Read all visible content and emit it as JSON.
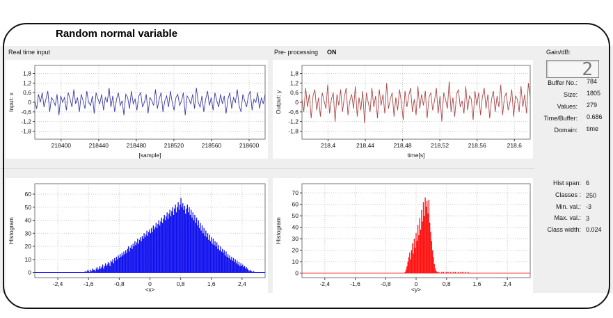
{
  "title": "Random normal variable",
  "top_left": {
    "label": "Real time input",
    "chart_data": {
      "type": "line",
      "ylabel": "Input: x",
      "xlabel": "[sample]",
      "xlim": [
        218372,
        218617
      ],
      "ylim": [
        -2.3,
        2.3
      ],
      "xticks": [
        218400,
        218440,
        218480,
        218520,
        218560,
        218600
      ],
      "xtick_labels": [
        "218400",
        "218440",
        "218480",
        "218520",
        "218560",
        "218600"
      ],
      "yticks": [
        1.8,
        1.2,
        0.6,
        0,
        -0.6,
        -1.2,
        -1.8
      ],
      "ytick_labels": [
        "1,8",
        "1,2",
        "0,6",
        "0",
        "-0,6",
        "-1,2",
        "-1,8"
      ],
      "color": "#3a3aa8",
      "grid": true,
      "y": [
        0.1,
        -0.4,
        0.5,
        0.0,
        0.6,
        -0.3,
        0.2,
        0.7,
        -0.6,
        0.3,
        0.1,
        -0.2,
        0.5,
        -0.8,
        0.4,
        0.0,
        0.3,
        -0.5,
        0.6,
        0.2,
        -0.3,
        0.8,
        -0.1,
        0.3,
        -0.6,
        0.5,
        0.1,
        -0.4,
        0.7,
        0.0,
        -0.2,
        0.4,
        -0.7,
        0.6,
        0.2,
        -0.1,
        0.5,
        -0.5,
        0.3,
        0.0,
        0.9,
        -0.3,
        0.4,
        -0.6,
        0.2,
        0.6,
        -0.2,
        0.1,
        -0.8,
        0.5,
        0.3,
        -0.4,
        0.7,
        -0.1,
        0.2,
        -0.5,
        0.4,
        0.6,
        -0.3,
        0.0,
        0.5,
        -0.7,
        0.3,
        0.1,
        -0.2,
        0.8,
        -0.4,
        0.2,
        0.6,
        -0.6,
        0.1,
        0.4,
        -0.3,
        0.7,
        0.0,
        -0.5,
        0.3,
        0.5,
        -0.2,
        0.1,
        0.6,
        -0.8,
        0.4,
        0.2,
        -0.1,
        0.5,
        -0.4,
        0.9,
        0.0,
        -0.3,
        0.4,
        -0.6,
        0.2,
        0.7,
        -0.2,
        0.3,
        -0.5,
        0.6,
        0.1,
        -0.3,
        0.5,
        -0.1,
        0.4,
        -0.7,
        0.2,
        0.6,
        -0.4,
        0.3,
        0.0,
        0.8,
        -0.2,
        -0.6,
        0.5,
        0.1,
        -0.3,
        0.4,
        0.7,
        -0.5,
        0.2,
        0.0,
        0.6,
        -0.4,
        0.3,
        -0.1,
        0.5
      ]
    }
  },
  "top_right": {
    "label": "Pre- processing",
    "status": "ON",
    "chart_data": {
      "type": "line",
      "ylabel": "Output: y",
      "xlabel": "time[s]",
      "xlim": [
        218.372,
        218.617
      ],
      "ylim": [
        -2.3,
        2.3
      ],
      "xticks": [
        218.4,
        218.44,
        218.48,
        218.52,
        218.56,
        218.6
      ],
      "xtick_labels": [
        "218,4",
        "218,44",
        "218,48",
        "218,52",
        "218,56",
        "218,6"
      ],
      "yticks": [
        1.8,
        1.2,
        0.6,
        0,
        -0.6,
        -1.2,
        -1.8
      ],
      "ytick_labels": [
        "1,8",
        "1,2",
        "0,6",
        "0",
        "-0,6",
        "-1,2",
        "-1,8"
      ],
      "color": "#a84848",
      "grid": true,
      "y": [
        0.2,
        -0.6,
        0.9,
        -0.3,
        0.5,
        -1.0,
        0.4,
        0.8,
        -0.5,
        0.3,
        -0.9,
        0.6,
        0.1,
        -0.4,
        1.1,
        -0.7,
        0.2,
        0.6,
        -1.2,
        0.5,
        -0.2,
        0.8,
        -0.6,
        0.3,
        0.9,
        -0.8,
        0.1,
        0.5,
        -0.4,
        1.0,
        -0.9,
        0.3,
        -0.5,
        0.7,
        -1.3,
        0.6,
        0.0,
        -0.6,
        0.9,
        -0.3,
        0.4,
        -1.0,
        0.8,
        -0.2,
        0.5,
        -0.7,
        1.2,
        -0.4,
        0.2,
        0.6,
        -0.9,
        0.3,
        -0.5,
        0.8,
        0.0,
        -1.1,
        0.7,
        -0.3,
        0.4,
        0.9,
        -0.6,
        0.2,
        -0.8,
        1.0,
        -0.4,
        0.5,
        -0.2,
        0.7,
        -1.0,
        0.3,
        0.6,
        -0.5,
        0.1,
        0.9,
        -0.7,
        0.4,
        -1.2,
        0.6,
        0.2,
        -0.4,
        1.3,
        -0.6,
        0.3,
        -0.9,
        0.5,
        0.8,
        -0.3,
        0.1,
        -0.7,
        1.0,
        -0.5,
        0.4,
        0.2,
        -1.1,
        0.7,
        -0.2,
        0.6,
        -0.8,
        0.3,
        0.9,
        -0.4,
        0.5,
        -1.0,
        0.2,
        0.7,
        -0.6,
        0.4,
        -0.3,
        1.1,
        -0.8,
        0.3,
        0.6,
        -0.5,
        0.0,
        0.8,
        -0.9,
        0.4,
        0.2,
        -0.6,
        1.0,
        -0.3,
        0.5,
        -0.7,
        1.2,
        0.3
      ]
    }
  },
  "bottom_left": {
    "chart_data": {
      "type": "bar",
      "ylabel": "Histogram",
      "xlabel": "<x>",
      "xlim": [
        -3.0,
        3.0
      ],
      "ylim": [
        -4,
        68
      ],
      "xticks": [
        -2.4,
        -1.6,
        -0.8,
        0,
        0.8,
        1.6,
        2.4
      ],
      "xtick_labels": [
        "-2,4",
        "-1,6",
        "-0,8",
        "0",
        "0,8",
        "1,6",
        "2,4"
      ],
      "yticks": [
        0,
        10,
        20,
        30,
        40,
        50,
        60
      ],
      "ytick_labels": [
        "0",
        "10",
        "20",
        "30",
        "40",
        "50",
        "60"
      ],
      "color": "#1010ee",
      "grid": true,
      "class_width": 0.024,
      "bin_start": -1.7,
      "values": [
        1,
        0,
        1,
        2,
        1,
        0,
        2,
        1,
        3,
        2,
        2,
        1,
        3,
        4,
        2,
        3,
        5,
        3,
        4,
        6,
        3,
        5,
        7,
        5,
        6,
        8,
        7,
        5,
        9,
        8,
        10,
        7,
        11,
        9,
        12,
        10,
        13,
        11,
        14,
        12,
        15,
        13,
        16,
        14,
        17,
        15,
        18,
        20,
        16,
        19,
        21,
        18,
        22,
        20,
        24,
        21,
        23,
        26,
        22,
        25,
        27,
        24,
        28,
        26,
        30,
        27,
        29,
        32,
        28,
        31,
        33,
        30,
        34,
        31,
        36,
        33,
        35,
        38,
        34,
        37,
        40,
        36,
        39,
        42,
        38,
        41,
        44,
        40,
        43,
        46,
        41,
        45,
        48,
        43,
        47,
        50,
        44,
        49,
        52,
        46,
        50,
        54,
        48,
        52,
        57,
        50,
        53,
        48,
        51,
        45,
        49,
        52,
        46,
        50,
        44,
        48,
        42,
        46,
        40,
        44,
        38,
        42,
        36,
        40,
        34,
        38,
        32,
        36,
        30,
        34,
        28,
        32,
        27,
        30,
        25,
        29,
        24,
        27,
        22,
        26,
        21,
        24,
        20,
        23,
        18,
        21,
        17,
        20,
        16,
        18,
        15,
        17,
        13,
        16,
        12,
        14,
        11,
        13,
        10,
        12,
        9,
        11,
        8,
        10,
        7,
        9,
        6,
        8,
        5,
        7,
        5,
        6,
        4,
        5,
        3,
        4,
        3,
        2,
        1,
        2,
        1,
        1,
        0,
        1
      ]
    }
  },
  "bottom_right": {
    "chart_data": {
      "type": "bar",
      "ylabel": "Histogram",
      "xlabel": "<y>",
      "xlim": [
        -3.0,
        3.0
      ],
      "ylim": [
        -4,
        78
      ],
      "xticks": [
        -2.4,
        -1.6,
        -0.8,
        0,
        0.8,
        1.6,
        2.4
      ],
      "xtick_labels": [
        "-2,4",
        "-1,6",
        "-0,8",
        "0",
        "0,8",
        "1,6",
        "2,4"
      ],
      "yticks": [
        0,
        10,
        20,
        30,
        40,
        50,
        60,
        70
      ],
      "ytick_labels": [
        "0",
        "10",
        "20",
        "30",
        "40",
        "50",
        "60",
        "70"
      ],
      "color": "#ff1010",
      "grid": true,
      "class_width": 0.024,
      "bin_start": -0.3,
      "values": [
        1,
        3,
        6,
        10,
        14,
        18,
        12,
        20,
        26,
        17,
        30,
        22,
        35,
        28,
        42,
        33,
        48,
        38,
        55,
        45,
        62,
        50,
        66,
        58,
        63,
        52,
        64,
        44,
        36,
        28,
        20,
        14,
        8,
        4,
        2,
        1,
        0,
        1,
        0,
        0,
        1,
        0,
        1,
        0,
        0,
        1,
        0,
        1,
        0,
        0,
        1,
        0,
        0,
        1,
        0,
        1,
        0,
        0,
        1,
        0,
        0,
        1,
        0,
        1,
        0,
        0,
        1,
        0,
        0,
        1
      ]
    }
  },
  "info_top": {
    "gain_label": "Gain/dB:",
    "gain_value": "2",
    "rows": [
      {
        "label": "Buffer No.:",
        "value": "784"
      },
      {
        "label": "Size:",
        "value": "1805"
      },
      {
        "label": "Values:",
        "value": "279"
      },
      {
        "label": "Time/Buffer:",
        "value": "0.686"
      },
      {
        "label": "Domain:",
        "value": "time"
      }
    ]
  },
  "info_bottom": {
    "rows": [
      {
        "label": "Hist span:",
        "value": "6"
      },
      {
        "label": "Classes :",
        "value": "250"
      },
      {
        "label": "Min. val.:",
        "value": "-3"
      },
      {
        "label": "Max. val.:",
        "value": "3"
      },
      {
        "label": "Class width:",
        "value": "0.024"
      }
    ]
  }
}
